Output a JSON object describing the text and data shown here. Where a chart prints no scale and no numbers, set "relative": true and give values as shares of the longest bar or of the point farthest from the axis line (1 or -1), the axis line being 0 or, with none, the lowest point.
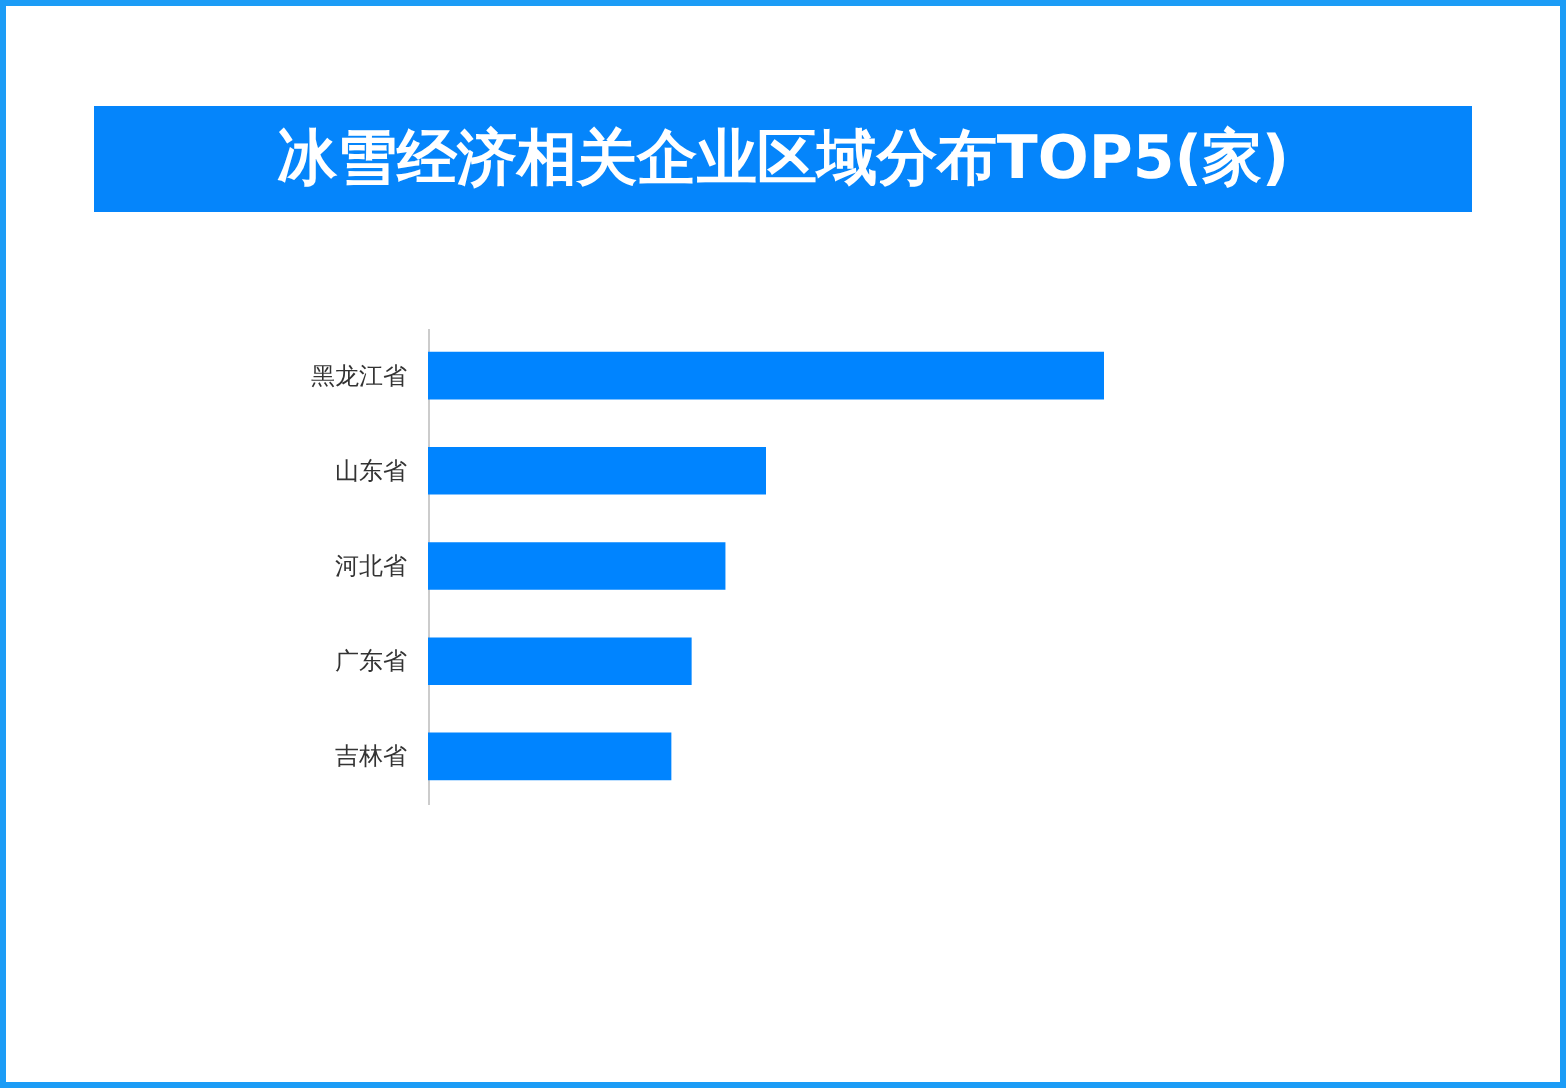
{
  "chart_data": {
    "type": "bar",
    "title": "冰雪经济相关企业区域分布TOP5(家)",
    "orientation": "horizontal",
    "relative": true,
    "categories": [
      "黑龙江省",
      "山东省",
      "河北省",
      "广东省",
      "吉林省"
    ],
    "values": [
      1,
      0.5,
      0.44,
      0.39,
      0.36
    ],
    "color": "#0084ff"
  }
}
